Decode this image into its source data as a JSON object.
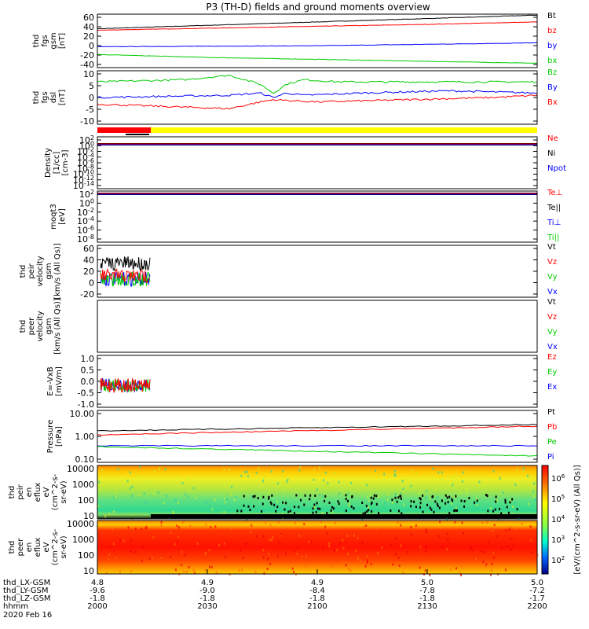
{
  "title": "P3 (TH-D) fields and ground moments overview",
  "colors": {
    "black": "#000000",
    "red": "#ff0000",
    "green": "#00cc00",
    "blue": "#0000ff",
    "yellow": "#ffff00"
  },
  "chart_data": [
    {
      "type": "line",
      "id": "fgs_gsm",
      "ylabel_lines": [
        "thd",
        "fgs",
        "gsm",
        "[nT]"
      ],
      "yticks": [
        "60",
        "40",
        "20",
        "0",
        "-20",
        "-40"
      ],
      "ylim": [
        -45,
        65
      ],
      "legend": [
        "Bt",
        "bz",
        "by",
        "bx"
      ],
      "series": [
        {
          "name": "Bt",
          "color": "#000000",
          "x": [
            0,
            0.25,
            0.5,
            0.75,
            1.0
          ],
          "values": [
            35,
            42,
            49,
            56,
            63
          ]
        },
        {
          "name": "bz",
          "color": "#ff0000",
          "x": [
            0,
            0.25,
            0.5,
            0.75,
            1.0
          ],
          "values": [
            32,
            36,
            40,
            44,
            49
          ]
        },
        {
          "name": "by",
          "color": "#0000ff",
          "x": [
            0,
            0.25,
            0.5,
            0.75,
            1.0
          ],
          "values": [
            -2,
            -1,
            0,
            3,
            6
          ]
        },
        {
          "name": "bx",
          "color": "#00cc00",
          "x": [
            0,
            0.25,
            0.5,
            0.75,
            1.0
          ],
          "values": [
            -18,
            -24,
            -28,
            -32,
            -36
          ]
        }
      ]
    },
    {
      "type": "line",
      "id": "fgs_dsl",
      "ylabel_lines": [
        "thd",
        "fgs",
        "dsl",
        "[nT]"
      ],
      "yticks": [
        "10",
        "5",
        "0",
        "-5",
        "-10"
      ],
      "ylim": [
        -14,
        10
      ],
      "legend": [
        "Bz",
        "By",
        "Bx"
      ],
      "series": [
        {
          "name": "Bz",
          "color": "#00cc00",
          "x": [
            0,
            0.2,
            0.3,
            0.37,
            0.4,
            0.43,
            0.47,
            0.55,
            0.75,
            1.0
          ],
          "values": [
            5,
            6,
            8,
            4,
            0,
            4,
            6,
            5,
            5,
            5
          ]
        },
        {
          "name": "By",
          "color": "#0000ff",
          "x": [
            0,
            0.3,
            0.37,
            0.4,
            0.43,
            0.47,
            0.6,
            0.8,
            1.0
          ],
          "values": [
            -2,
            -1,
            0,
            -2,
            0,
            -1,
            0,
            1,
            0
          ]
        },
        {
          "name": "Bx",
          "color": "#ff0000",
          "x": [
            0,
            0.3,
            0.37,
            0.4,
            0.5,
            0.7,
            0.9,
            1.0
          ],
          "values": [
            -5,
            -7,
            -4,
            -3,
            -4,
            -3,
            -2,
            -1
          ]
        }
      ]
    },
    {
      "type": "line",
      "id": "density",
      "ylabel_lines": [
        "Density",
        "[1/cc]",
        "[cm-3]"
      ],
      "yticks": [
        "10^2",
        "10^0",
        "10^-2",
        "10^-4",
        "10^-6",
        "10^-8",
        "10^-10",
        "10^-12",
        "10^-14"
      ],
      "legend": [
        "Ne",
        "Ni",
        "Npot"
      ],
      "legend_colors": [
        "#ff0000",
        "#000000",
        "#0000ff"
      ]
    },
    {
      "type": "line",
      "id": "temperature",
      "ylabel_lines": [
        "moqt3",
        "[eV]"
      ],
      "yticks": [
        "10^2",
        "10^0",
        "10^-2",
        "10^-4",
        "10^-6",
        "10^-8"
      ],
      "legend": [
        "Te⊥",
        "Te||",
        "Ti⊥",
        "Ti||"
      ],
      "legend_colors": [
        "#ff0000",
        "#000000",
        "#0000ff",
        "#00cc00"
      ]
    },
    {
      "type": "line",
      "id": "peir_velocity",
      "ylabel_lines": [
        "thd",
        "peir",
        "velocity",
        "gsm",
        "[km/s (All Qs)]"
      ],
      "yticks": [
        "60",
        "40",
        "20",
        "0",
        "-20"
      ],
      "legend": [
        "Vt",
        "Vz",
        "Vy",
        "Vx"
      ],
      "legend_colors": [
        "#000000",
        "#ff0000",
        "#00cc00",
        "#0000ff"
      ]
    },
    {
      "type": "line",
      "id": "peer_velocity",
      "ylabel_lines": [
        "thd",
        "peer",
        "velocity",
        "gsm",
        "[km/s (All Qs)]"
      ],
      "yticks": [],
      "legend": [
        "Vt",
        "Vz",
        "Vy",
        "Vx"
      ],
      "legend_colors": [
        "#000000",
        "#ff0000",
        "#00cc00",
        "#0000ff"
      ]
    },
    {
      "type": "line",
      "id": "efield",
      "ylabel_lines": [
        "E=-VxB",
        "[mV/m]"
      ],
      "yticks": [
        "1.0",
        "0.5",
        "0.0",
        "-0.5",
        "-1.0"
      ],
      "legend": [
        "Ez",
        "Ey",
        "Ex"
      ],
      "legend_colors": [
        "#ff0000",
        "#00cc00",
        "#0000ff"
      ]
    },
    {
      "type": "line",
      "id": "pressure",
      "ylabel_lines": [
        "Pressure",
        "[nPa]"
      ],
      "yticks": [
        "10.00",
        "1.00",
        "0.10"
      ],
      "legend": [
        "Pt",
        "Pb",
        "Pe",
        "Pi"
      ],
      "legend_colors": [
        "#000000",
        "#ff0000",
        "#00cc00",
        "#0000ff"
      ]
    },
    {
      "type": "heatmap",
      "id": "peir_spec",
      "ylabel_lines": [
        "thd",
        "peir",
        "en",
        "eflux",
        "eV",
        "(cm^2-s-",
        "sr-eV)"
      ],
      "yticks": [
        "10000",
        "1000",
        "100",
        "10"
      ]
    },
    {
      "type": "heatmap",
      "id": "peer_spec",
      "ylabel_lines": [
        "thd",
        "peer",
        "en",
        "eflux",
        "eV",
        "(cm^2-s-",
        "sr-eV)"
      ],
      "yticks": [
        "10000",
        "1000",
        "100",
        "10"
      ]
    }
  ],
  "colorbar": {
    "ticks": [
      "10^6",
      "10^5",
      "10^4",
      "10^3",
      "10^2"
    ],
    "label": "[eV/(cm^2-s-sr-eV) (All Qs)]"
  },
  "xaxis": {
    "rows": [
      {
        "label": "thd_LX-GSM",
        "values": [
          "4.8",
          "4.9",
          "4.9",
          "5.0",
          "5.0"
        ]
      },
      {
        "label": "thd_LY-GSM",
        "values": [
          "-9.6",
          "-9.0",
          "-8.4",
          "-7.8",
          "-7.2"
        ]
      },
      {
        "label": "thd_LZ-GSM",
        "values": [
          "-1.8",
          "-1.8",
          "-1.8",
          "-1.8",
          "-1.7"
        ]
      },
      {
        "label": "hhmm",
        "values": [
          "2000",
          "2030",
          "2100",
          "2130",
          "2200"
        ]
      }
    ],
    "date": "2020 Feb 16"
  }
}
